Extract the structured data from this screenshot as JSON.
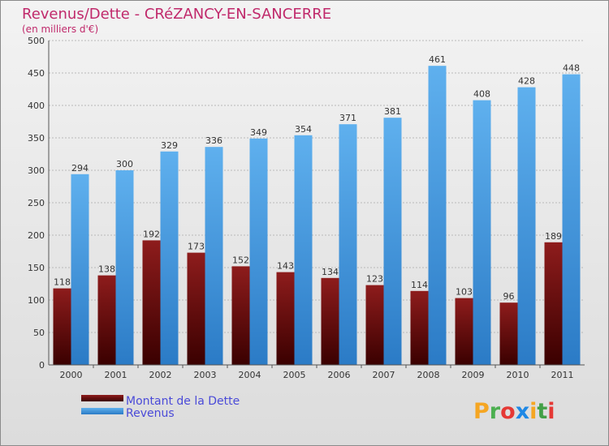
{
  "chart_data": {
    "type": "bar",
    "title": "Revenus/Dette - CRéZANCY-EN-SANCERRE",
    "subtitle": "(en milliers d'€)",
    "categories": [
      "2000",
      "2001",
      "2002",
      "2003",
      "2004",
      "2005",
      "2006",
      "2007",
      "2008",
      "2009",
      "2010",
      "2011"
    ],
    "series": [
      {
        "name": "Montant de la Dette",
        "color": "#7a0a0a",
        "values": [
          118,
          138,
          192,
          173,
          152,
          143,
          134,
          123,
          114,
          103,
          96,
          189
        ]
      },
      {
        "name": "Revenus",
        "color": "#3d8fd8",
        "values": [
          294,
          300,
          329,
          336,
          349,
          354,
          371,
          381,
          461,
          408,
          428,
          448
        ]
      }
    ],
    "yticks": [
      "0",
      "50",
      "100",
      "150",
      "200",
      "250",
      "300",
      "350",
      "400",
      "450",
      "500"
    ],
    "ylim": [
      0,
      500
    ],
    "grid": true,
    "legend_position": "bottom-left"
  },
  "branding": {
    "logo_letters": [
      "P",
      "r",
      "o",
      "x",
      "i",
      "t",
      "i"
    ],
    "logo_colors": [
      "#f5a623",
      "#4caf50",
      "#e53935",
      "#1e88e5",
      "#f5a623",
      "#43a047",
      "#e53935"
    ]
  }
}
